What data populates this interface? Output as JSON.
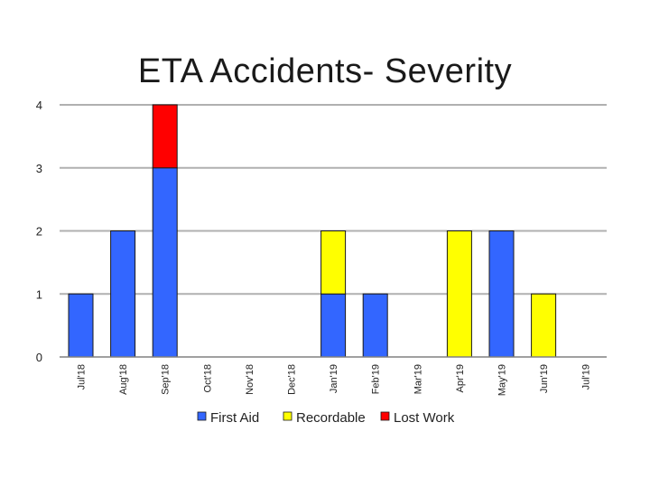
{
  "chart_data": {
    "type": "bar",
    "stacked": true,
    "title": "ETA Accidents- Severity",
    "xlabel": "",
    "ylabel": "",
    "ylim": [
      0,
      4
    ],
    "yticks": [
      0,
      1,
      2,
      3,
      4
    ],
    "grid": true,
    "legend_position": "bottom",
    "categories": [
      "Jul'18",
      "Aug'18",
      "Sep'18",
      "Oct'18",
      "Nov'18",
      "Dec'18",
      "Jan'19",
      "Feb'19",
      "Mar'19",
      "Apr'19",
      "May'19",
      "Jun'19",
      "Jul'19"
    ],
    "series": [
      {
        "name": "First Aid",
        "color": "#3366ff",
        "values": [
          1,
          2,
          3,
          0,
          0,
          0,
          1,
          1,
          0,
          0,
          2,
          0,
          0
        ]
      },
      {
        "name": "Recordable",
        "color": "#ffff00",
        "values": [
          0,
          0,
          0,
          0,
          0,
          0,
          1,
          0,
          0,
          2,
          0,
          1,
          0
        ]
      },
      {
        "name": "Lost Work",
        "color": "#ff0000",
        "values": [
          0,
          0,
          1,
          0,
          0,
          0,
          0,
          0,
          0,
          0,
          0,
          0,
          0
        ]
      }
    ]
  }
}
